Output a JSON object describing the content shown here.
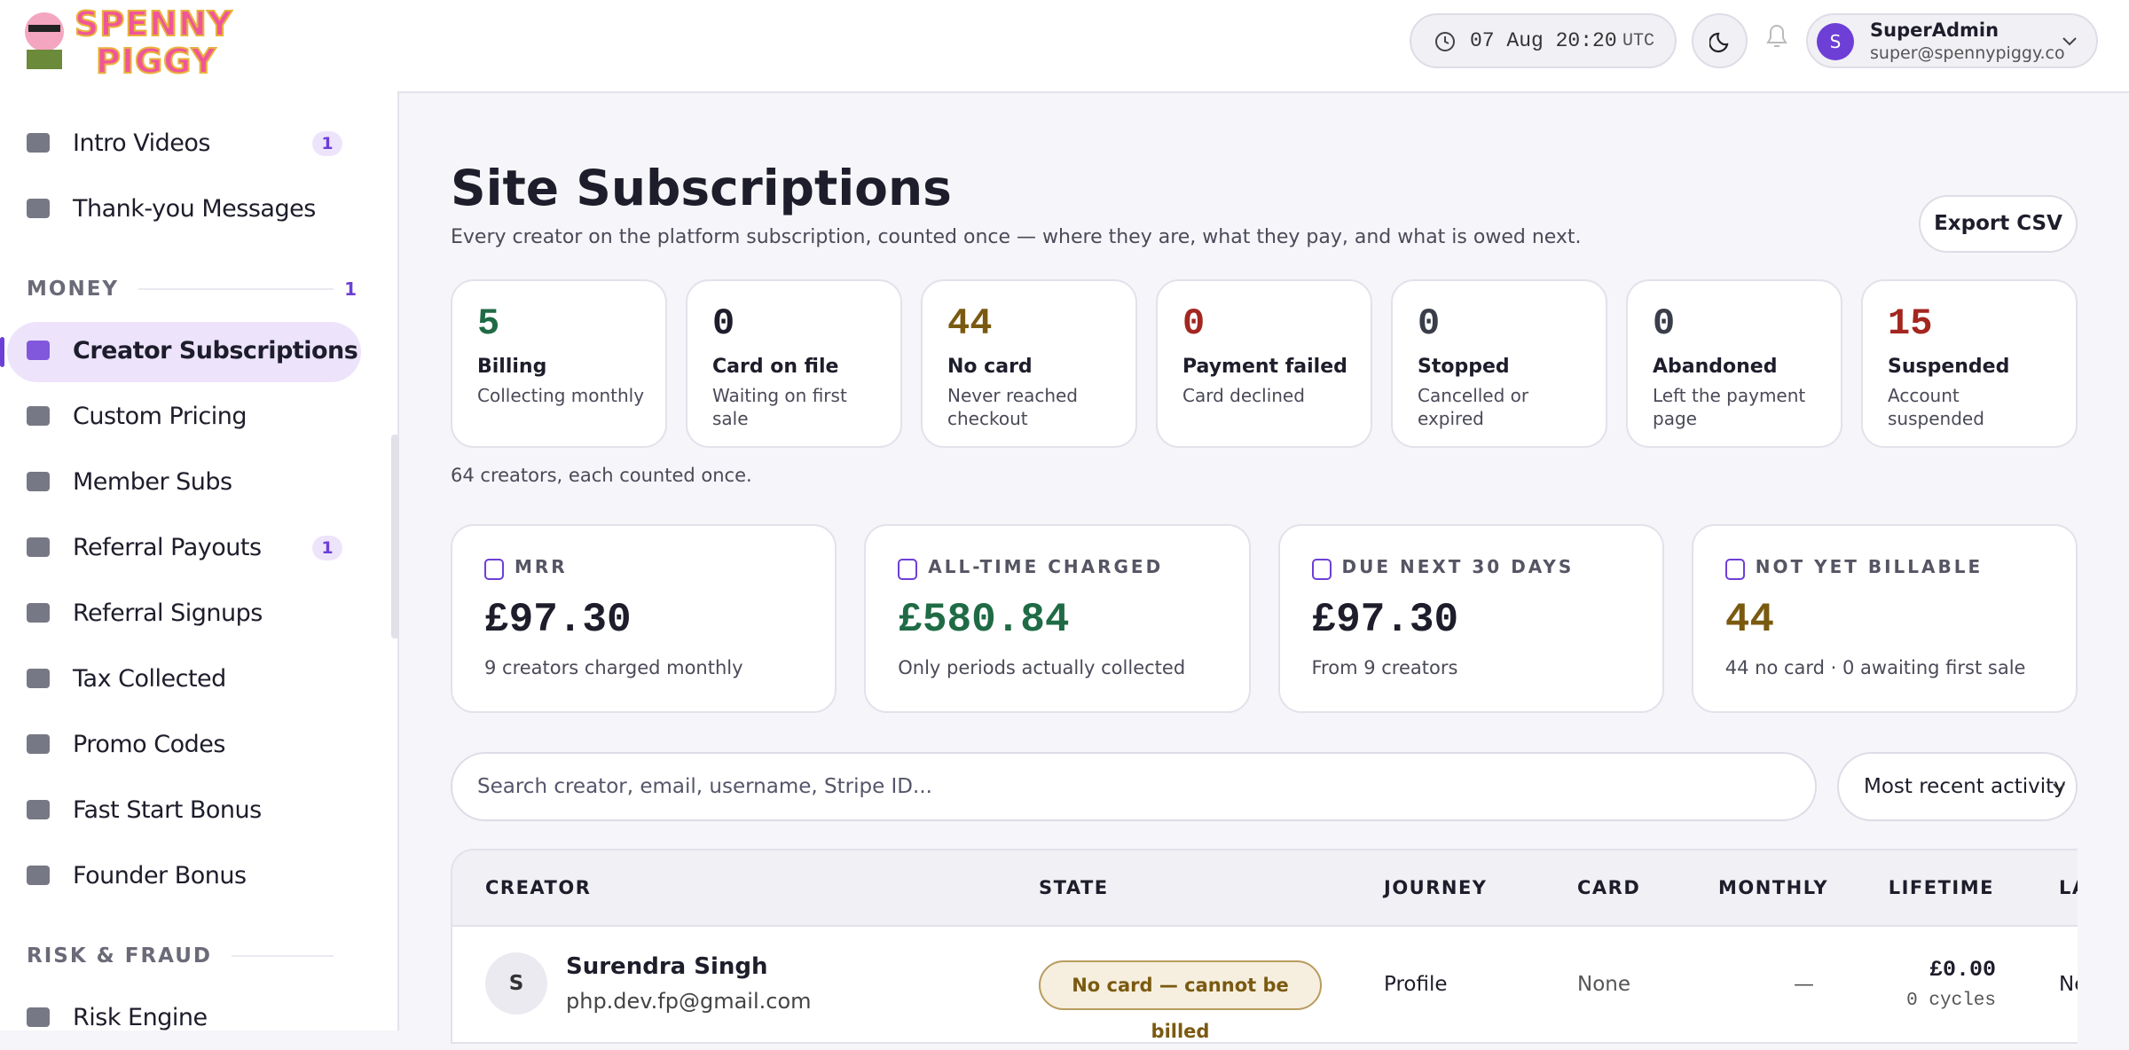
{
  "header": {
    "logo_lines": [
      "SPENNY",
      "PIGGY"
    ],
    "clock": {
      "time": "07 Aug 20:20",
      "zone": "UTC"
    },
    "user": {
      "initial": "S",
      "name": "SuperAdmin",
      "email": "super@spennypiggy.co"
    }
  },
  "sidebar": [
    {
      "label": "Intro Videos",
      "badge": 1
    },
    {
      "label": "Thank-you Messages"
    },
    {
      "heading": "MONEY",
      "count": 1
    },
    {
      "label": "Creator Subscriptions",
      "active": true
    },
    {
      "label": "Custom Pricing"
    },
    {
      "label": "Member Subs"
    },
    {
      "label": "Referral Payouts",
      "badge": 1
    },
    {
      "label": "Referral Signups"
    },
    {
      "label": "Tax Collected"
    },
    {
      "label": "Promo Codes"
    },
    {
      "label": "Fast Start Bonus"
    },
    {
      "label": "Founder Bonus"
    },
    {
      "heading": "RISK & FRAUD"
    },
    {
      "label": "Risk Engine"
    }
  ],
  "page": {
    "title": "Site Subscriptions",
    "subtitle": "Every creator on the platform subscription, counted once — where they are, what they pay, and what is owed next.",
    "export": "Export CSV"
  },
  "state_cards": [
    {
      "value": 5,
      "label": "Billing",
      "sub": "Collecting monthly",
      "color": "#1f6b45"
    },
    {
      "value": 0,
      "label": "Card on file",
      "sub": "Waiting on first sale",
      "color": "#1d1d2b"
    },
    {
      "value": 44,
      "label": "No card",
      "sub": "Never reached checkout",
      "color": "#7a5a10"
    },
    {
      "value": 0,
      "label": "Payment failed",
      "sub": "Card declined",
      "color": "#a3261f"
    },
    {
      "value": 0,
      "label": "Stopped",
      "sub": "Cancelled or expired",
      "color": "#3a3d4a"
    },
    {
      "value": 0,
      "label": "Abandoned",
      "sub": "Left the payment page",
      "color": "#3a3d4a"
    },
    {
      "value": 15,
      "label": "Suspended",
      "sub": "Account suspended",
      "color": "#a3261f"
    }
  ],
  "note": "64 creators, each counted once.",
  "metrics": [
    {
      "label": "MRR",
      "value": "£97.30",
      "sub": "9 creators charged monthly",
      "color": "#1d1d2b"
    },
    {
      "label": "ALL-TIME CHARGED",
      "value": "£580.84",
      "sub": "Only periods actually collected",
      "color": "#1f6b45"
    },
    {
      "label": "DUE NEXT 30 DAYS",
      "value": "£97.30",
      "sub": "From 9 creators",
      "color": "#1d1d2b"
    },
    {
      "label": "NOT YET BILLABLE",
      "value": "44",
      "sub": "44 no card · 0 awaiting first sale",
      "color": "#7a5a10"
    }
  ],
  "search": {
    "placeholder": "Search creator, email, username, Stripe ID...",
    "sort": "Most recent activity"
  },
  "table": {
    "columns": [
      "CREATOR",
      "STATE",
      "JOURNEY",
      "CARD",
      "MONTHLY",
      "LIFETIME",
      "LA"
    ],
    "rows": [
      {
        "initial": "S",
        "name": "Surendra Singh",
        "email": "php.dev.fp@gmail.com",
        "state": "No card — cannot be billed",
        "journey": "Profile",
        "card": "None",
        "monthly": "—",
        "lifetime": "£0.00",
        "cycles": "0 cycles",
        "last": "Ne"
      }
    ]
  }
}
